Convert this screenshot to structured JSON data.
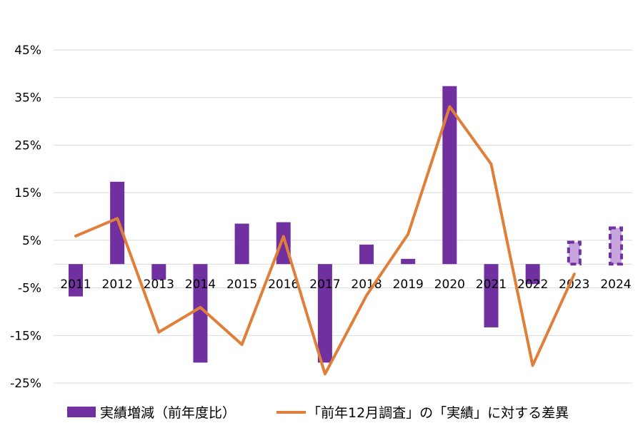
{
  "chart_data": {
    "type": "bar",
    "categories": [
      "2011",
      "2012",
      "2013",
      "2014",
      "2015",
      "2016",
      "2017",
      "2018",
      "2019",
      "2020",
      "2021",
      "2022",
      "2023",
      "2024"
    ],
    "series": [
      {
        "name": "実績増減（前年度比）",
        "kind": "bar",
        "color": "#7030a0",
        "values": [
          -6.8,
          17.3,
          -3.3,
          -20.7,
          8.5,
          8.8,
          -20.7,
          4.1,
          1.1,
          37.4,
          -13.3,
          -4.2,
          4.9,
          7.9
        ],
        "projected_from_index": 12,
        "projected_fill": "#c7a6dd"
      },
      {
        "name": "「前年12月調査」の「実績」に対する差異",
        "kind": "line",
        "color": "#e07f3a",
        "values": [
          5.9,
          9.6,
          -14.3,
          -9.1,
          -16.9,
          5.8,
          -23.1,
          -6.6,
          6.3,
          33.1,
          21.0,
          -21.3,
          -2.1,
          null
        ]
      }
    ],
    "yticks": [
      "-25%",
      "-15%",
      "-5%",
      "5%",
      "15%",
      "25%",
      "35%",
      "45%"
    ],
    "ylim": [
      -25,
      45
    ],
    "grid": true,
    "legend": "bottom"
  }
}
